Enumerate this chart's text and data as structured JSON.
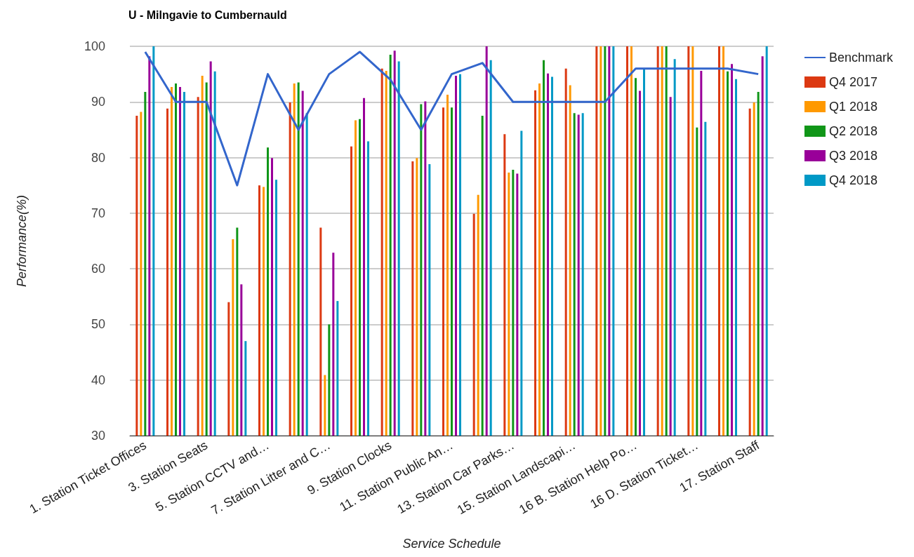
{
  "chart_data": {
    "type": "bar",
    "title": "U - Milngavie to Cumbernauld",
    "xlabel": "Service Schedule",
    "ylabel": "Performance(%)",
    "categories": [
      "1. Station Ticket Offices",
      null,
      "3. Station Seats",
      null,
      "5. Station CCTV and…",
      null,
      "7. Station Litter and C…",
      null,
      "9. Station Clocks",
      null,
      "11. Station Public An…",
      null,
      "13. Station Car Parks…",
      null,
      "15. Station Landscapi…",
      null,
      "16 B. Station Help Po…",
      null,
      "16 D. Station Ticket…",
      null,
      "17. Station Staff"
    ],
    "series": [
      {
        "name": "Benchmark",
        "type": "line",
        "color": "#3366cc",
        "values": [
          99,
          90,
          90,
          75,
          95,
          85,
          95,
          99,
          94,
          85,
          95,
          97,
          90,
          90,
          90,
          90,
          96,
          96,
          96,
          96,
          95
        ]
      },
      {
        "name": "Q4 2017",
        "color": "#dc3912",
        "values": [
          87.5,
          88.8,
          90.9,
          54,
          75,
          89.9,
          67.4,
          82,
          96,
          79.3,
          89,
          69.9,
          84.2,
          92.1,
          96,
          100,
          100,
          100,
          100,
          100,
          88.8
        ]
      },
      {
        "name": "Q1 2018",
        "color": "#ff9900",
        "values": [
          88.2,
          92.7,
          94.7,
          65.3,
          74.7,
          93.3,
          40.9,
          86.7,
          95.6,
          79.9,
          91.3,
          73.3,
          77.3,
          93.3,
          93,
          100,
          100,
          100,
          100,
          100,
          89.9
        ]
      },
      {
        "name": "Q2 2018",
        "color": "#109618",
        "values": [
          91.8,
          93.3,
          93.5,
          67.4,
          81.8,
          93.5,
          50,
          86.9,
          98.5,
          89.6,
          89,
          87.5,
          77.8,
          97.5,
          88,
          100,
          94.3,
          100,
          85.4,
          95.5,
          91.8
        ]
      },
      {
        "name": "Q3 2018",
        "color": "#990099",
        "values": [
          98.2,
          92.7,
          97.3,
          57.2,
          79.9,
          92,
          62.9,
          90.7,
          99.2,
          90.1,
          94.7,
          100,
          77.1,
          95.1,
          87.7,
          100,
          92,
          90.9,
          95.6,
          96.8,
          98.2
        ]
      },
      {
        "name": "Q4 2018",
        "color": "#0099c6",
        "values": [
          100,
          91.8,
          95.5,
          47,
          76,
          88,
          54.2,
          82.9,
          97.3,
          78.8,
          95,
          97.5,
          84.8,
          94.5,
          88,
          100,
          96,
          97.7,
          86.4,
          94.1,
          100
        ]
      }
    ],
    "ylim": [
      30,
      100
    ],
    "yticks": [
      30,
      40,
      50,
      60,
      70,
      80,
      90,
      100
    ],
    "grid": "y",
    "legend": "right",
    "marker": "none"
  }
}
